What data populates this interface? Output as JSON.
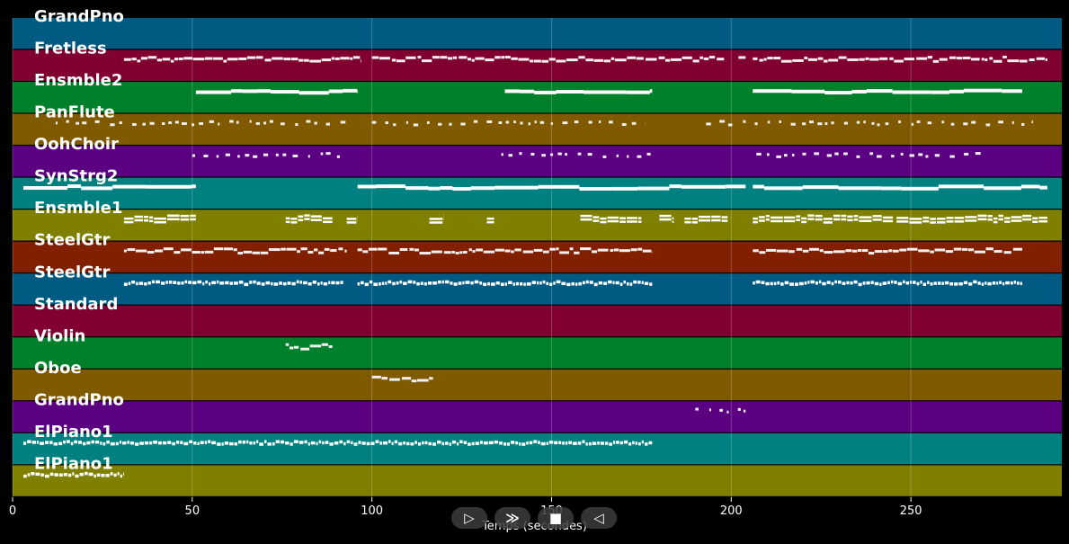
{
  "chart_data": {
    "type": "piano-roll",
    "xlabel": "Temps (secondes)",
    "xlim": [
      0,
      292
    ],
    "xticks": [
      0,
      50,
      100,
      150,
      200,
      250
    ],
    "grid": true,
    "tracks": [
      {
        "name": "GrandPno",
        "color": "#005a82",
        "style": "none",
        "segments": []
      },
      {
        "name": "Fretless",
        "color": "#800030",
        "style": "melody",
        "segments": [
          [
            31,
            97
          ],
          [
            100,
            198
          ],
          [
            202,
            204
          ],
          [
            206,
            288
          ]
        ]
      },
      {
        "name": "Ensmble2",
        "color": "#00802a",
        "style": "sustain",
        "segments": [
          [
            51,
            96
          ],
          [
            137,
            178
          ],
          [
            206,
            281
          ]
        ]
      },
      {
        "name": "PanFlute",
        "color": "#805a00",
        "style": "sparse",
        "segments": [
          [
            12,
            93
          ],
          [
            100,
            176
          ],
          [
            193,
            284
          ]
        ]
      },
      {
        "name": "OohChoir",
        "color": "#5a0080",
        "style": "sparse",
        "segments": [
          [
            50,
            93
          ],
          [
            136,
            178
          ],
          [
            207,
            271
          ]
        ]
      },
      {
        "name": "SynStrg2",
        "color": "#008080",
        "style": "sustain",
        "segments": [
          [
            3,
            51
          ],
          [
            96,
            204
          ],
          [
            206,
            288
          ]
        ]
      },
      {
        "name": "Ensmble1",
        "color": "#808000",
        "style": "chords",
        "segments": [
          [
            31,
            51
          ],
          [
            76,
            89
          ],
          [
            93,
            96
          ],
          [
            116,
            120
          ],
          [
            132,
            134
          ],
          [
            158,
            175
          ],
          [
            180,
            184
          ],
          [
            187,
            199
          ],
          [
            206,
            245
          ],
          [
            246,
            281
          ],
          [
            281,
            288
          ]
        ]
      },
      {
        "name": "SteelGtr",
        "color": "#802000",
        "style": "melody",
        "segments": [
          [
            31,
            93
          ],
          [
            96,
            178
          ],
          [
            206,
            281
          ]
        ]
      },
      {
        "name": "SteelGtr",
        "color": "#005a82",
        "style": "dense",
        "segments": [
          [
            31,
            92
          ],
          [
            96,
            178
          ],
          [
            206,
            281
          ]
        ]
      },
      {
        "name": "Standard",
        "color": "#800030",
        "style": "none",
        "segments": []
      },
      {
        "name": "Violin",
        "color": "#00802a",
        "style": "melody",
        "segments": [
          [
            76,
            89
          ]
        ]
      },
      {
        "name": "Oboe",
        "color": "#805a00",
        "style": "melody",
        "segments": [
          [
            100,
            117
          ]
        ]
      },
      {
        "name": "GrandPno",
        "color": "#5a0080",
        "style": "sparse",
        "segments": [
          [
            190,
            204
          ]
        ]
      },
      {
        "name": "ElPiano1",
        "color": "#008080",
        "style": "dense",
        "segments": [
          [
            3,
            178
          ]
        ]
      },
      {
        "name": "ElPiano1",
        "color": "#808000",
        "style": "dense",
        "segments": [
          [
            3,
            31
          ]
        ]
      }
    ]
  },
  "player_controls": {
    "play_icon": "▷",
    "forward_icon": "≫",
    "stop_icon": "■",
    "rewind_icon": "◁"
  }
}
